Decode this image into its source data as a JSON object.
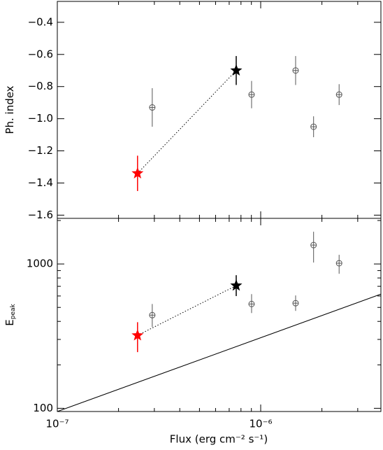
{
  "x_axis": {
    "label": "Flux (erg cm⁻² s⁻¹)",
    "log": true,
    "xlim": [
      1e-07,
      3.9e-06
    ],
    "xticks": [
      {
        "value": 1e-07,
        "label": "10⁻⁷"
      },
      {
        "value": 1e-06,
        "label": "10⁻⁶"
      }
    ],
    "xminor": [
      2e-07,
      3e-07,
      4e-07,
      5e-07,
      6e-07,
      7e-07,
      8e-07,
      9e-07,
      2e-06,
      3e-06
    ]
  },
  "chart_data": [
    {
      "type": "scatter",
      "ylabel": "Ph. index",
      "ylim": [
        -1.62,
        -0.27
      ],
      "yticks": [
        {
          "value": -1.6,
          "label": "−1.6"
        },
        {
          "value": -1.4,
          "label": "−1.4"
        },
        {
          "value": -1.2,
          "label": "−1.2"
        },
        {
          "value": -1.0,
          "label": "−1.0"
        },
        {
          "value": -0.8,
          "label": "−0.8"
        },
        {
          "value": -0.6,
          "label": "−0.6"
        },
        {
          "value": -0.4,
          "label": "−0.4"
        }
      ],
      "series": [
        {
          "marker": "star",
          "color": "#ff0000",
          "x": [
            2.48e-07
          ],
          "values": [
            -1.34
          ],
          "lower": [
            -1.45
          ],
          "upper": [
            -1.23
          ]
        },
        {
          "marker": "star",
          "color": "#000000",
          "x": [
            7.58e-07
          ],
          "values": [
            -0.7
          ],
          "lower": [
            -0.79
          ],
          "upper": [
            -0.61
          ]
        },
        {
          "marker": "circle",
          "color": "#555555",
          "x": [
            2.93e-07,
            9.02e-07,
            1.485e-06,
            1.82e-06,
            2.43e-06
          ],
          "values": [
            -0.93,
            -0.85,
            -0.7,
            -1.05,
            -0.85
          ],
          "lower": [
            -1.05,
            -0.935,
            -0.79,
            -1.115,
            -0.915
          ],
          "upper": [
            -0.81,
            -0.765,
            -0.61,
            -0.985,
            -0.785
          ]
        }
      ]
    },
    {
      "type": "scatter",
      "ylabel": "E",
      "ylabel_sub": "peak",
      "log": true,
      "ylim": [
        95,
        2070
      ],
      "yticks": [
        100,
        1000
      ],
      "yminor": [
        200,
        300,
        400,
        500,
        600,
        700,
        800,
        900,
        2000
      ],
      "series": [
        {
          "marker": "star",
          "color": "#ff0000",
          "x": [
            2.48e-07
          ],
          "values": [
            320
          ],
          "lower": [
            245
          ],
          "upper": [
            395
          ]
        },
        {
          "marker": "star",
          "color": "#000000",
          "x": [
            7.58e-07
          ],
          "values": [
            708
          ],
          "lower": [
            599
          ],
          "upper": [
            836
          ]
        },
        {
          "marker": "circle",
          "color": "#555555",
          "x": [
            2.93e-07,
            9.02e-07,
            1.485e-06,
            1.82e-06,
            2.43e-06
          ],
          "values": [
            442,
            528,
            535,
            1352,
            1012
          ],
          "lower": [
            366,
            457,
            473,
            1023,
            855
          ],
          "upper": [
            528,
            618,
            605,
            1672,
            1157
          ]
        },
        {
          "marker": "line",
          "color": "#000000",
          "x": [
            1e-07,
            3.9e-06
          ],
          "values": [
            95,
            618
          ]
        }
      ]
    }
  ]
}
